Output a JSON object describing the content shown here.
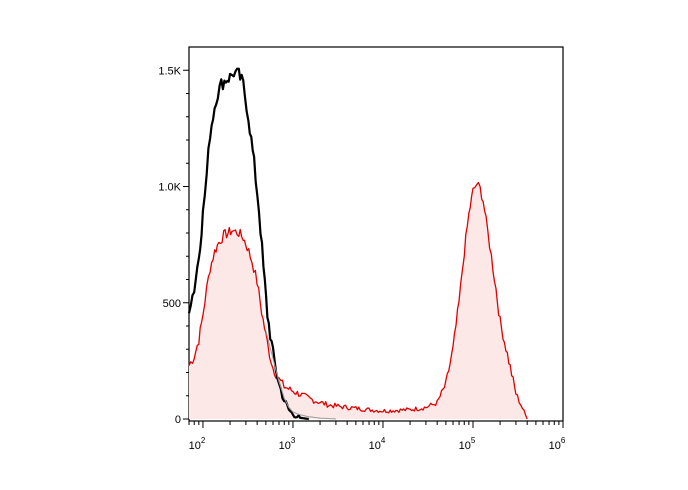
{
  "chart_data": {
    "type": "area",
    "title": "",
    "xlabel": "",
    "ylabel": "",
    "x_scale": "log",
    "xlim": [
      70,
      1000000
    ],
    "ylim": [
      0,
      1600
    ],
    "grid": false,
    "legend": "none",
    "x_ticks": [
      {
        "value": 100,
        "base": "10",
        "exp": "2"
      },
      {
        "value": 1000,
        "base": "10",
        "exp": "3"
      },
      {
        "value": 10000,
        "base": "10",
        "exp": "4"
      },
      {
        "value": 100000,
        "base": "10",
        "exp": "5"
      },
      {
        "value": 1000000,
        "base": "10",
        "exp": "6"
      }
    ],
    "y_ticks": [
      {
        "value": 0,
        "label": "0"
      },
      {
        "value": 500,
        "label": "500"
      },
      {
        "value": 1000,
        "label": "1.0K"
      },
      {
        "value": 1500,
        "label": "1.5K"
      }
    ],
    "series": [
      {
        "color": "#e00000",
        "fill": "#fde8e8",
        "points": [
          [
            70,
            230
          ],
          [
            80,
            270
          ],
          [
            90,
            340
          ],
          [
            100,
            450
          ],
          [
            110,
            560
          ],
          [
            120,
            650
          ],
          [
            135,
            720
          ],
          [
            150,
            760
          ],
          [
            170,
            790
          ],
          [
            190,
            800
          ],
          [
            210,
            810
          ],
          [
            230,
            805
          ],
          [
            250,
            800
          ],
          [
            280,
            780
          ],
          [
            310,
            740
          ],
          [
            350,
            680
          ],
          [
            400,
            590
          ],
          [
            450,
            460
          ],
          [
            500,
            360
          ],
          [
            550,
            280
          ],
          [
            600,
            220
          ],
          [
            700,
            170
          ],
          [
            800,
            140
          ],
          [
            1000,
            120
          ],
          [
            1300,
            100
          ],
          [
            1700,
            80
          ],
          [
            2500,
            60
          ],
          [
            4000,
            50
          ],
          [
            7000,
            40
          ],
          [
            10000,
            35
          ],
          [
            15000,
            38
          ],
          [
            20000,
            40
          ],
          [
            30000,
            50
          ],
          [
            40000,
            70
          ],
          [
            50000,
            150
          ],
          [
            60000,
            300
          ],
          [
            70000,
            500
          ],
          [
            80000,
            720
          ],
          [
            90000,
            880
          ],
          [
            100000,
            980
          ],
          [
            110000,
            1010
          ],
          [
            120000,
            990
          ],
          [
            130000,
            940
          ],
          [
            140000,
            850
          ],
          [
            160000,
            700
          ],
          [
            180000,
            560
          ],
          [
            200000,
            420
          ],
          [
            250000,
            250
          ],
          [
            300000,
            110
          ],
          [
            400000,
            0
          ]
        ]
      },
      {
        "color": "#000000",
        "points": [
          [
            70,
            480
          ],
          [
            80,
            560
          ],
          [
            90,
            700
          ],
          [
            100,
            880
          ],
          [
            110,
            1050
          ],
          [
            120,
            1230
          ],
          [
            140,
            1380
          ],
          [
            160,
            1440
          ],
          [
            180,
            1460
          ],
          [
            200,
            1470
          ],
          [
            220,
            1490
          ],
          [
            250,
            1480
          ],
          [
            280,
            1440
          ],
          [
            320,
            1300
          ],
          [
            370,
            1100
          ],
          [
            420,
            900
          ],
          [
            470,
            650
          ],
          [
            520,
            450
          ],
          [
            600,
            280
          ],
          [
            700,
            150
          ],
          [
            800,
            80
          ],
          [
            900,
            40
          ],
          [
            1000,
            20
          ],
          [
            1200,
            5
          ],
          [
            1500,
            0
          ]
        ]
      },
      {
        "color": "#9a9a9a",
        "points": [
          [
            500,
            380
          ],
          [
            600,
            260
          ],
          [
            700,
            160
          ],
          [
            800,
            90
          ],
          [
            900,
            50
          ],
          [
            1000,
            30
          ],
          [
            1200,
            18
          ],
          [
            1500,
            10
          ],
          [
            2000,
            4
          ],
          [
            3000,
            0
          ]
        ]
      }
    ]
  }
}
